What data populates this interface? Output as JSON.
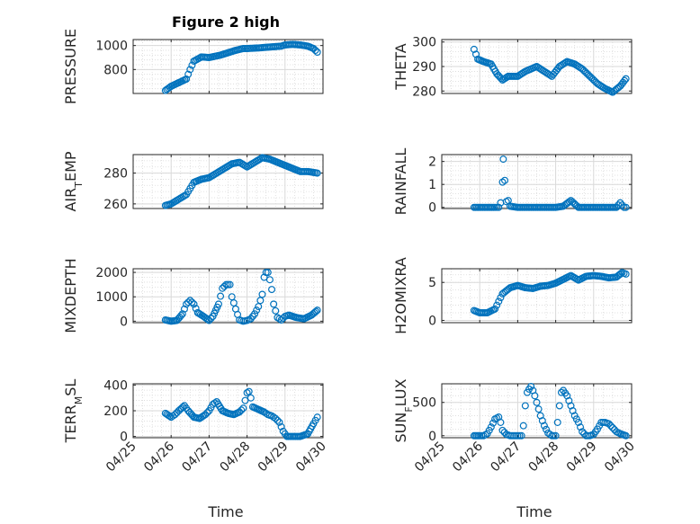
{
  "figure": {
    "title": "Figure 2 high",
    "xlabel": "Time",
    "marker_color": "#0072BD",
    "grid_color": "#d9d9d9",
    "axis_color": "#262626"
  },
  "chart_data": [
    {
      "type": "scatter",
      "ylabel": "PRESSURE",
      "ylabel_sub": "",
      "xlim": [
        "04/25",
        "04/30"
      ],
      "ylim": [
        600,
        1050
      ],
      "yticks": [
        800,
        1000
      ],
      "xtick_labels": [],
      "grid": "major+minor",
      "marker": "open circle",
      "series": [
        {
          "x": [
            25.85,
            26.0,
            26.2,
            26.4,
            26.5,
            26.6,
            26.8,
            27.0,
            27.3,
            27.5,
            27.7,
            27.9,
            28.0,
            28.3,
            28.5,
            28.7,
            28.9,
            29.0,
            29.2,
            29.4,
            29.6,
            29.75,
            29.85
          ],
          "y": [
            625,
            660,
            690,
            720,
            800,
            870,
            905,
            900,
            920,
            940,
            960,
            975,
            975,
            980,
            985,
            990,
            995,
            1005,
            1010,
            1005,
            995,
            975,
            945
          ]
        }
      ]
    },
    {
      "type": "scatter",
      "ylabel": "THETA",
      "ylabel_sub": "",
      "xlim": [
        "04/25",
        "04/30"
      ],
      "ylim": [
        279,
        301
      ],
      "yticks": [
        280,
        290,
        300
      ],
      "xtick_labels": [],
      "grid": "major+minor",
      "marker": "open circle",
      "series": [
        {
          "x": [
            25.85,
            25.95,
            26.1,
            26.3,
            26.45,
            26.6,
            26.75,
            27.0,
            27.2,
            27.5,
            27.7,
            27.9,
            28.1,
            28.3,
            28.5,
            28.7,
            28.9,
            29.1,
            29.3,
            29.5,
            29.7,
            29.85
          ],
          "y": [
            297,
            293,
            292,
            291,
            287,
            284.5,
            286,
            286,
            288,
            290,
            288,
            286,
            290,
            292,
            291,
            289,
            286,
            283,
            281,
            279.5,
            282,
            285
          ]
        }
      ]
    },
    {
      "type": "scatter",
      "ylabel": "AIR",
      "ylabel_sub": "T",
      "ylabel_suffix": "EMP",
      "xlim": [
        "04/25",
        "04/30"
      ],
      "ylim": [
        257,
        292
      ],
      "yticks": [
        260,
        280
      ],
      "xtick_labels": [],
      "grid": "major+minor",
      "marker": "open circle",
      "series": [
        {
          "x": [
            25.85,
            26.0,
            26.2,
            26.4,
            26.5,
            26.6,
            26.8,
            27.0,
            27.2,
            27.4,
            27.6,
            27.8,
            28.0,
            28.2,
            28.4,
            28.6,
            28.8,
            29.0,
            29.2,
            29.4,
            29.6,
            29.85
          ],
          "y": [
            259,
            260,
            263,
            266,
            270,
            274,
            276,
            277,
            280,
            283,
            286,
            287,
            284,
            287,
            290,
            289,
            287,
            285,
            283,
            281,
            281,
            280
          ]
        }
      ]
    },
    {
      "type": "scatter",
      "ylabel": "RAINFALL",
      "ylabel_sub": "",
      "xlim": [
        "04/25",
        "04/30"
      ],
      "ylim": [
        -0.05,
        2.3
      ],
      "yticks": [
        0,
        1,
        2
      ],
      "xtick_labels": [],
      "grid": "major+minor",
      "marker": "open circle",
      "series": [
        {
          "x": [
            25.85,
            26.0,
            26.2,
            26.4,
            26.5,
            26.55,
            26.6,
            26.62,
            26.7,
            26.75,
            26.8,
            27.0,
            27.2,
            27.4,
            27.6,
            27.8,
            28.0,
            28.2,
            28.4,
            28.6,
            28.8,
            29.0,
            29.2,
            29.4,
            29.6,
            29.7,
            29.8,
            29.85
          ],
          "y": [
            0,
            0,
            0,
            0,
            0,
            0.2,
            1.1,
            2.1,
            0.25,
            0.3,
            0.05,
            0,
            0,
            0,
            0,
            0,
            0,
            0.05,
            0.3,
            0,
            0,
            0,
            0,
            0,
            0,
            0.2,
            0,
            0
          ]
        }
      ]
    },
    {
      "type": "scatter",
      "ylabel": "MIXDEPTH",
      "ylabel_sub": "",
      "xlim": [
        "04/25",
        "04/30"
      ],
      "ylim": [
        -60,
        2150
      ],
      "yticks": [
        0,
        1000,
        2000
      ],
      "xtick_labels": [],
      "grid": "major+minor",
      "marker": "open circle",
      "series": [
        {
          "x": [
            25.85,
            26.0,
            26.15,
            26.3,
            26.4,
            26.5,
            26.6,
            26.7,
            26.85,
            27.0,
            27.1,
            27.25,
            27.35,
            27.45,
            27.55,
            27.6,
            27.7,
            27.8,
            27.9,
            28.0,
            28.1,
            28.2,
            28.3,
            28.4,
            28.45,
            28.5,
            28.55,
            28.6,
            28.65,
            28.7,
            28.8,
            28.9,
            29.0,
            29.1,
            29.3,
            29.5,
            29.7,
            29.85
          ],
          "y": [
            50,
            0,
            30,
            300,
            700,
            850,
            700,
            350,
            200,
            30,
            200,
            700,
            1350,
            1500,
            1500,
            1000,
            500,
            50,
            0,
            30,
            100,
            300,
            600,
            1100,
            1800,
            2000,
            2000,
            1700,
            1300,
            700,
            150,
            50,
            200,
            250,
            150,
            100,
            250,
            450
          ]
        }
      ]
    },
    {
      "type": "scatter",
      "ylabel": "H2OMIXRA",
      "ylabel_sub": "",
      "xlim": [
        "04/25",
        "04/30"
      ],
      "ylim": [
        -0.3,
        6.8
      ],
      "yticks": [
        0,
        5
      ],
      "xtick_labels": [],
      "grid": "major+minor",
      "marker": "open circle",
      "series": [
        {
          "x": [
            25.85,
            26.0,
            26.2,
            26.4,
            26.5,
            26.6,
            26.8,
            27.0,
            27.2,
            27.4,
            27.6,
            27.8,
            28.0,
            28.2,
            28.4,
            28.6,
            28.8,
            29.0,
            29.2,
            29.4,
            29.6,
            29.75,
            29.85
          ],
          "y": [
            1.3,
            1.0,
            1.0,
            1.5,
            2.5,
            3.5,
            4.3,
            4.6,
            4.3,
            4.2,
            4.5,
            4.6,
            4.9,
            5.4,
            5.9,
            5.3,
            5.8,
            5.9,
            5.8,
            5.6,
            5.7,
            6.3,
            6.1
          ]
        }
      ]
    },
    {
      "type": "scatter",
      "ylabel": "TERR",
      "ylabel_sub": "M",
      "ylabel_suffix": "SL",
      "xlim": [
        "04/25",
        "04/30"
      ],
      "ylim": [
        -10,
        410
      ],
      "yticks": [
        0,
        200,
        400
      ],
      "xtick_labels": [
        "04/25",
        "04/26",
        "04/27",
        "04/28",
        "04/29",
        "04/30"
      ],
      "grid": "major+minor",
      "marker": "open circle",
      "series": [
        {
          "x": [
            25.85,
            26.0,
            26.1,
            26.2,
            26.35,
            26.45,
            26.6,
            26.75,
            26.9,
            27.0,
            27.1,
            27.2,
            27.35,
            27.5,
            27.65,
            27.8,
            27.9,
            28.0,
            28.05,
            28.1,
            28.15,
            28.3,
            28.45,
            28.55,
            28.65,
            28.75,
            28.85,
            28.95,
            29.05,
            29.2,
            29.4,
            29.6,
            29.75,
            29.85
          ],
          "y": [
            180,
            150,
            170,
            200,
            240,
            200,
            150,
            140,
            170,
            200,
            250,
            270,
            200,
            180,
            170,
            190,
            220,
            340,
            350,
            300,
            230,
            210,
            190,
            170,
            160,
            140,
            110,
            40,
            0,
            0,
            0,
            20,
            100,
            150
          ]
        }
      ]
    },
    {
      "type": "scatter",
      "ylabel": "SUN",
      "ylabel_sub": "F",
      "ylabel_suffix": "LUX",
      "xlim": [
        "04/25",
        "04/30"
      ],
      "ylim": [
        -30,
        780
      ],
      "yticks": [
        0,
        500
      ],
      "xtick_labels": [
        "04/25",
        "04/26",
        "04/27",
        "04/28",
        "04/29",
        "04/30"
      ],
      "grid": "major+minor",
      "marker": "open circle",
      "series": [
        {
          "x": [
            25.85,
            26.0,
            26.1,
            26.2,
            26.3,
            26.4,
            26.5,
            26.55,
            26.6,
            26.7,
            26.8,
            26.9,
            27.0,
            27.1,
            27.15,
            27.2,
            27.25,
            27.3,
            27.35,
            27.4,
            27.45,
            27.5,
            27.6,
            27.7,
            27.8,
            27.9,
            28.0,
            28.05,
            28.1,
            28.15,
            28.2,
            28.3,
            28.4,
            28.5,
            28.6,
            28.7,
            28.8,
            28.9,
            29.0,
            29.1,
            29.2,
            29.3,
            29.4,
            29.5,
            29.6,
            29.7,
            29.85
          ],
          "y": [
            0,
            0,
            0,
            30,
            130,
            250,
            280,
            200,
            80,
            20,
            0,
            0,
            0,
            0,
            150,
            450,
            650,
            700,
            740,
            680,
            600,
            500,
            300,
            150,
            40,
            0,
            0,
            200,
            450,
            650,
            680,
            600,
            450,
            300,
            200,
            60,
            0,
            0,
            20,
            100,
            200,
            200,
            180,
            120,
            60,
            30,
            0
          ]
        }
      ]
    }
  ]
}
